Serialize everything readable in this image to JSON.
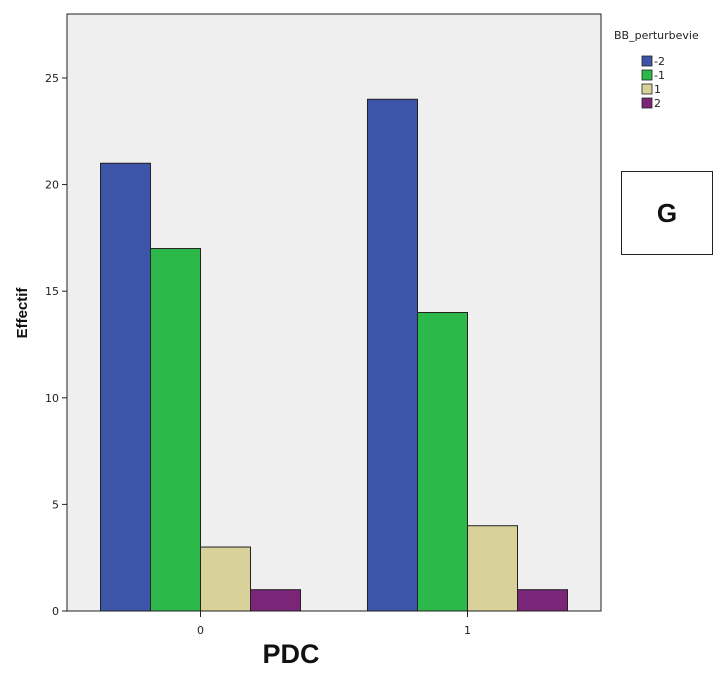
{
  "panel_label": "G",
  "chart_data": {
    "type": "bar",
    "categories": [
      "0",
      "1"
    ],
    "series": [
      {
        "name": "-2",
        "color": "#3d55a8",
        "values": [
          21,
          24
        ]
      },
      {
        "name": "-1",
        "color": "#2db84a",
        "values": [
          17,
          14
        ]
      },
      {
        "name": "1",
        "color": "#d8d29a",
        "values": [
          3,
          4
        ]
      },
      {
        "name": "2",
        "color": "#7a2577",
        "values": [
          1,
          1
        ]
      }
    ],
    "xlabel": "PDC",
    "ylabel": "Effectif",
    "ylim": [
      0,
      28
    ],
    "yticks": [
      0,
      5,
      10,
      15,
      20,
      25
    ],
    "legend_title": "BB_perturbevie",
    "legend_position": "top-right",
    "plot_background": "#efefef",
    "grid": false
  }
}
